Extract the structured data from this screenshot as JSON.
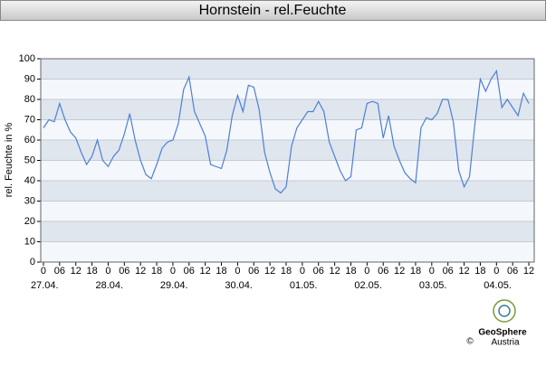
{
  "chart_data": {
    "type": "line",
    "title": "Hornstein - rel.Feuchte",
    "ylabel": "rel. Feuchte in %",
    "x": [
      0,
      2,
      4,
      6,
      8,
      10,
      12,
      14,
      16,
      18,
      20,
      22,
      24,
      26,
      28,
      30,
      32,
      34,
      36,
      38,
      40,
      42,
      44,
      46,
      48,
      50,
      52,
      54,
      56,
      58,
      60,
      62,
      64,
      66,
      68,
      70,
      72,
      74,
      76,
      78,
      80,
      82,
      84,
      86,
      88,
      90,
      92,
      94,
      96,
      98,
      100,
      102,
      104,
      106,
      108,
      110,
      112,
      114,
      116,
      118,
      120,
      122,
      124,
      126,
      128,
      130,
      132,
      134,
      136,
      138,
      140,
      142,
      144,
      146,
      148,
      150,
      152,
      154,
      156,
      158,
      160,
      162,
      164,
      166,
      168,
      170,
      172,
      174,
      176,
      178,
      180
    ],
    "series": [
      {
        "color": "#4f7fd6",
        "values": [
          66,
          70,
          69,
          78,
          70,
          64,
          61,
          54,
          48,
          52,
          60,
          50,
          47,
          52,
          55,
          63,
          73,
          60,
          50,
          43,
          41,
          48,
          56,
          59,
          60,
          68,
          85,
          91,
          74,
          68,
          62,
          48,
          47,
          46,
          55,
          72,
          82,
          74,
          87,
          86,
          75,
          54,
          44,
          36,
          34,
          37,
          57,
          66,
          70,
          74,
          74,
          79,
          74,
          59,
          52,
          45,
          40,
          42,
          65,
          66,
          78,
          79,
          78,
          61,
          72,
          57,
          50,
          44,
          41,
          39,
          66,
          71,
          70,
          73,
          80,
          80,
          69,
          45,
          37,
          42,
          68,
          90,
          84,
          90,
          94,
          76,
          80,
          76,
          72,
          83,
          78
        ]
      }
    ],
    "xlim": [
      -1,
      182
    ],
    "xticks": [
      {
        "value": 0,
        "label": "0"
      },
      {
        "value": 6,
        "label": "06"
      },
      {
        "value": 12,
        "label": "12"
      },
      {
        "value": 18,
        "label": "18"
      },
      {
        "value": 24,
        "label": "0"
      },
      {
        "value": 30,
        "label": "06"
      },
      {
        "value": 36,
        "label": "12"
      },
      {
        "value": 42,
        "label": "18"
      },
      {
        "value": 48,
        "label": "0"
      },
      {
        "value": 54,
        "label": "06"
      },
      {
        "value": 60,
        "label": "12"
      },
      {
        "value": 66,
        "label": "18"
      },
      {
        "value": 72,
        "label": "0"
      },
      {
        "value": 78,
        "label": "06"
      },
      {
        "value": 84,
        "label": "12"
      },
      {
        "value": 90,
        "label": "18"
      },
      {
        "value": 96,
        "label": "0"
      },
      {
        "value": 102,
        "label": "06"
      },
      {
        "value": 108,
        "label": "12"
      },
      {
        "value": 114,
        "label": "18"
      },
      {
        "value": 120,
        "label": "0"
      },
      {
        "value": 126,
        "label": "06"
      },
      {
        "value": 132,
        "label": "12"
      },
      {
        "value": 138,
        "label": "18"
      },
      {
        "value": 144,
        "label": "0"
      },
      {
        "value": 150,
        "label": "06"
      },
      {
        "value": 156,
        "label": "12"
      },
      {
        "value": 162,
        "label": "18"
      },
      {
        "value": 168,
        "label": "0"
      },
      {
        "value": 174,
        "label": "06"
      },
      {
        "value": 180,
        "label": "12"
      }
    ],
    "day_labels": [
      {
        "value": 0,
        "label": "27.04."
      },
      {
        "value": 24,
        "label": "28.04."
      },
      {
        "value": 48,
        "label": "29.04."
      },
      {
        "value": 72,
        "label": "30.04."
      },
      {
        "value": 96,
        "label": "01.05."
      },
      {
        "value": 120,
        "label": "02.05."
      },
      {
        "value": 144,
        "label": "03.05."
      },
      {
        "value": 168,
        "label": "04.05."
      }
    ],
    "ylim": [
      0,
      100
    ],
    "yticks": [
      0,
      10,
      20,
      30,
      40,
      50,
      60,
      70,
      80,
      90,
      100
    ],
    "grid": true,
    "band_colors": [
      "#f4f7fb",
      "#dfe6ee"
    ],
    "annotations": [
      "GeoSphere",
      "Austria",
      "©"
    ]
  }
}
